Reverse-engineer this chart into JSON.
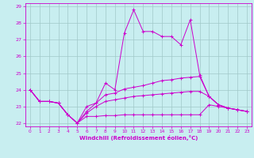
{
  "title": "",
  "xlabel": "Windchill (Refroidissement éolien,°C)",
  "ylabel": "",
  "bg_color": "#c8eef0",
  "grid_color": "#a0c8c8",
  "line_color": "#cc00cc",
  "xlim": [
    -0.5,
    23.5
  ],
  "ylim": [
    21.8,
    29.2
  ],
  "yticks": [
    22,
    23,
    24,
    25,
    26,
    27,
    28,
    29
  ],
  "xticks": [
    0,
    1,
    2,
    3,
    4,
    5,
    6,
    7,
    8,
    9,
    10,
    11,
    12,
    13,
    14,
    15,
    16,
    17,
    18,
    19,
    20,
    21,
    22,
    23
  ],
  "line1_x": [
    0,
    1,
    2,
    3,
    4,
    5,
    6,
    7,
    8,
    9,
    10,
    11,
    12,
    13,
    14,
    15,
    16,
    17,
    18,
    19,
    20,
    21,
    22,
    23
  ],
  "line1_y": [
    24.0,
    23.3,
    23.3,
    23.2,
    22.5,
    22.0,
    23.0,
    23.2,
    24.4,
    24.0,
    27.4,
    28.8,
    27.5,
    27.5,
    27.2,
    27.2,
    26.7,
    28.2,
    24.9,
    23.6,
    23.1,
    22.9,
    22.8,
    22.7
  ],
  "line2_x": [
    0,
    1,
    2,
    3,
    4,
    5,
    6,
    7,
    8,
    9,
    10,
    11,
    12,
    13,
    14,
    15,
    16,
    17,
    18,
    19,
    20,
    21,
    22,
    23
  ],
  "line2_y": [
    24.0,
    23.3,
    23.3,
    23.2,
    22.5,
    22.0,
    22.7,
    23.2,
    23.7,
    23.8,
    24.05,
    24.15,
    24.25,
    24.4,
    24.55,
    24.6,
    24.7,
    24.75,
    24.8,
    23.6,
    23.1,
    22.9,
    22.8,
    22.7
  ],
  "line3_x": [
    0,
    1,
    2,
    3,
    4,
    5,
    6,
    7,
    8,
    9,
    10,
    11,
    12,
    13,
    14,
    15,
    16,
    17,
    18,
    19,
    20,
    21,
    22,
    23
  ],
  "line3_y": [
    24.0,
    23.3,
    23.3,
    23.2,
    22.5,
    22.0,
    22.6,
    23.0,
    23.3,
    23.4,
    23.5,
    23.6,
    23.65,
    23.7,
    23.75,
    23.8,
    23.85,
    23.9,
    23.9,
    23.6,
    23.1,
    22.9,
    22.8,
    22.7
  ],
  "line4_x": [
    0,
    1,
    2,
    3,
    4,
    5,
    6,
    7,
    8,
    9,
    10,
    11,
    12,
    13,
    14,
    15,
    16,
    17,
    18,
    19,
    20,
    21,
    22,
    23
  ],
  "line4_y": [
    24.0,
    23.3,
    23.3,
    23.2,
    22.5,
    22.0,
    22.4,
    22.4,
    22.45,
    22.45,
    22.5,
    22.5,
    22.5,
    22.5,
    22.5,
    22.5,
    22.5,
    22.5,
    22.5,
    23.1,
    23.0,
    22.9,
    22.8,
    22.7
  ]
}
